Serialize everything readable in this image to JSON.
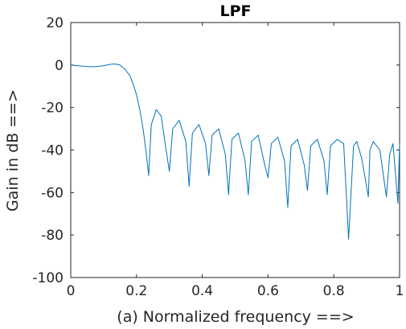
{
  "chart_data": {
    "type": "line",
    "title": "LPF",
    "xlabel": "(a) Normalized frequency ==>",
    "ylabel": "Gain in dB ==>",
    "xlim": [
      0,
      1
    ],
    "ylim": [
      -100,
      20
    ],
    "xticks": [
      "0",
      "0.2",
      "0.4",
      "0.6",
      "0.8",
      "1"
    ],
    "yticks": [
      "20",
      "0",
      "-20",
      "-40",
      "-60",
      "-80",
      "-100"
    ],
    "grid": false,
    "line_color": "#0072BD",
    "series": [
      {
        "x": [
          0,
          0.02,
          0.04,
          0.06,
          0.08,
          0.1,
          0.12,
          0.135,
          0.15,
          0.165,
          0.18,
          0.19,
          0.2,
          0.21,
          0.22,
          0.23,
          0.237,
          0.245,
          0.26,
          0.275,
          0.29,
          0.3,
          0.31,
          0.33,
          0.35,
          0.36,
          0.37,
          0.39,
          0.41,
          0.42,
          0.43,
          0.45,
          0.47,
          0.48,
          0.49,
          0.51,
          0.53,
          0.54,
          0.55,
          0.57,
          0.59,
          0.6,
          0.61,
          0.63,
          0.65,
          0.66,
          0.67,
          0.69,
          0.71,
          0.72,
          0.73,
          0.75,
          0.77,
          0.78,
          0.79,
          0.81,
          0.83,
          0.845,
          0.86,
          0.87,
          0.885,
          0.905,
          0.91,
          0.92,
          0.94,
          0.96,
          0.97,
          0.98,
          0.995,
          1.0
        ],
        "y": [
          0,
          -0.3,
          -0.6,
          -0.8,
          -0.7,
          -0.3,
          0.3,
          0.5,
          0,
          -2,
          -5,
          -9,
          -14,
          -21,
          -30,
          -42,
          -52,
          -28,
          -21,
          -24,
          -40,
          -50,
          -30,
          -26,
          -36,
          -57,
          -32,
          -28,
          -37,
          -52,
          -33,
          -30,
          -42,
          -61,
          -35,
          -32,
          -45,
          -61,
          -36,
          -33,
          -47,
          -53,
          -37,
          -34,
          -45,
          -67,
          -38,
          -35,
          -47,
          -59,
          -38,
          -35,
          -45,
          -61,
          -38,
          -35,
          -37,
          -82,
          -38,
          -36,
          -44,
          -62,
          -40,
          -36,
          -40,
          -62,
          -42,
          -37,
          -65,
          -37
        ]
      }
    ]
  }
}
